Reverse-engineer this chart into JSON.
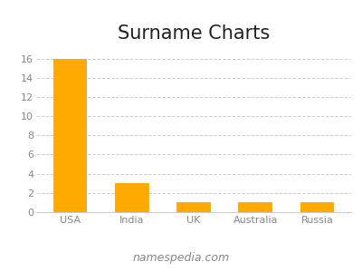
{
  "title": "Surname Charts",
  "categories": [
    "USA",
    "India",
    "UK",
    "Australia",
    "Russia"
  ],
  "values": [
    16,
    3,
    1,
    1,
    1
  ],
  "bar_color": "#FFAA00",
  "background_color": "#ffffff",
  "ylim": [
    0,
    17
  ],
  "yticks": [
    0,
    2,
    4,
    6,
    8,
    10,
    12,
    14,
    16
  ],
  "grid_color": "#cccccc",
  "footnote": "namespedia.com",
  "title_fontsize": 15,
  "tick_fontsize": 8,
  "footnote_fontsize": 9,
  "bar_width": 0.55
}
